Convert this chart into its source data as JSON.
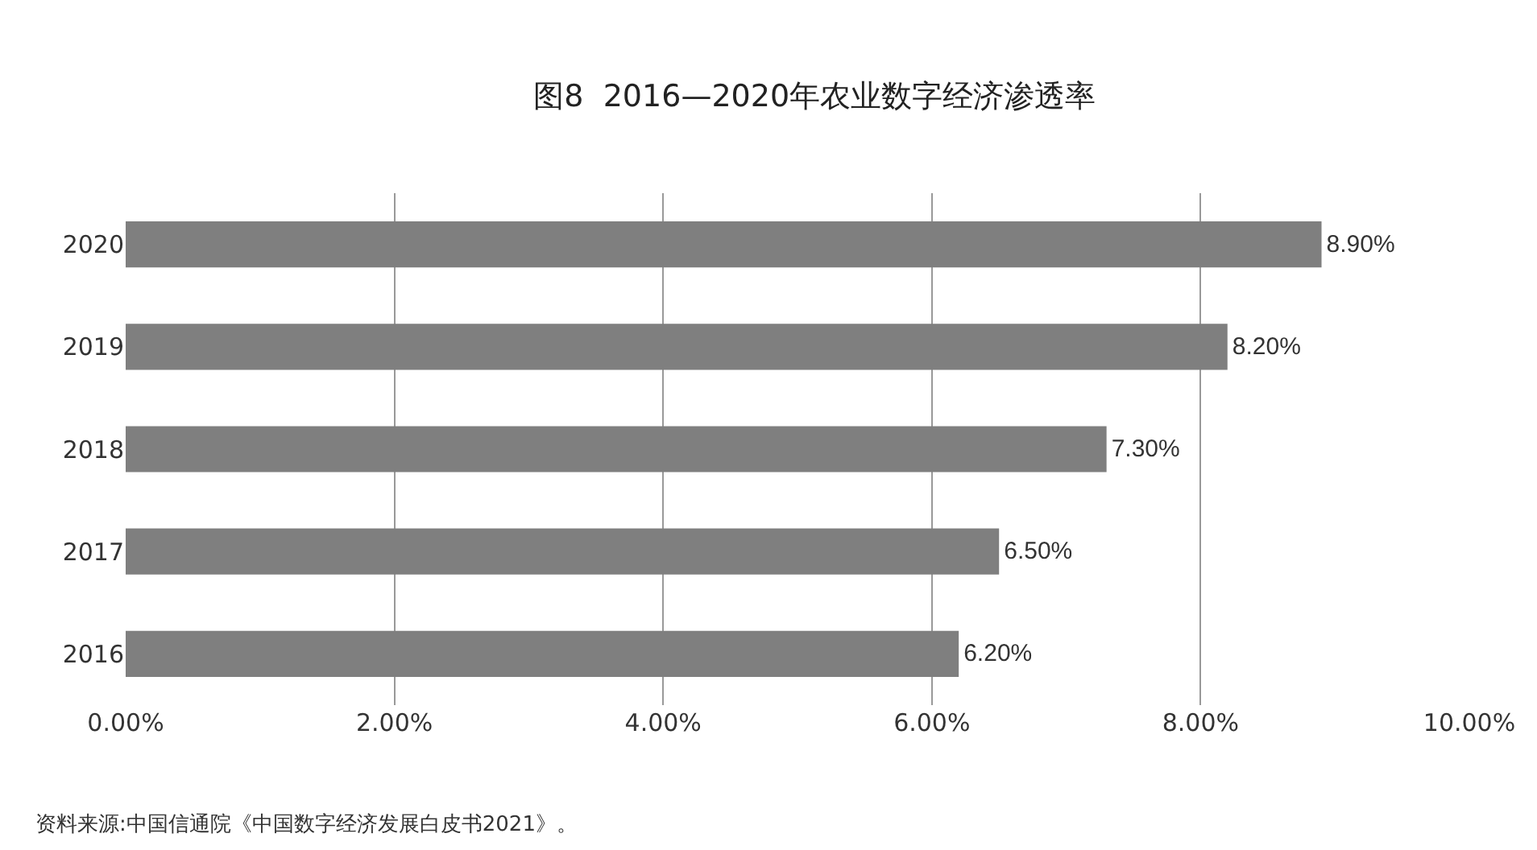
{
  "chart_data": {
    "type": "bar",
    "orientation": "horizontal",
    "title": "图8  2016—2020年农业数字经济渗透率",
    "categories": [
      "2020",
      "2019",
      "2018",
      "2017",
      "2016"
    ],
    "values": [
      8.9,
      8.2,
      7.3,
      6.5,
      6.2
    ],
    "value_labels": [
      "8.90%",
      "8.20%",
      "7.30%",
      "6.50%",
      "6.20%"
    ],
    "color": "#7f7f7f",
    "xlim": [
      0,
      10
    ],
    "xticks": [
      {
        "value": 0,
        "label": "0.00%"
      },
      {
        "value": 2,
        "label": "2.00%"
      },
      {
        "value": 4,
        "label": "4.00%"
      },
      {
        "value": 6,
        "label": "6.00%"
      },
      {
        "value": 8,
        "label": "8.00%"
      },
      {
        "value": 10,
        "label": "10.00%"
      }
    ],
    "grid": "x",
    "annotations": [
      "资料来源:中国信通院《中国数字经济发展白皮书2021》。"
    ]
  }
}
